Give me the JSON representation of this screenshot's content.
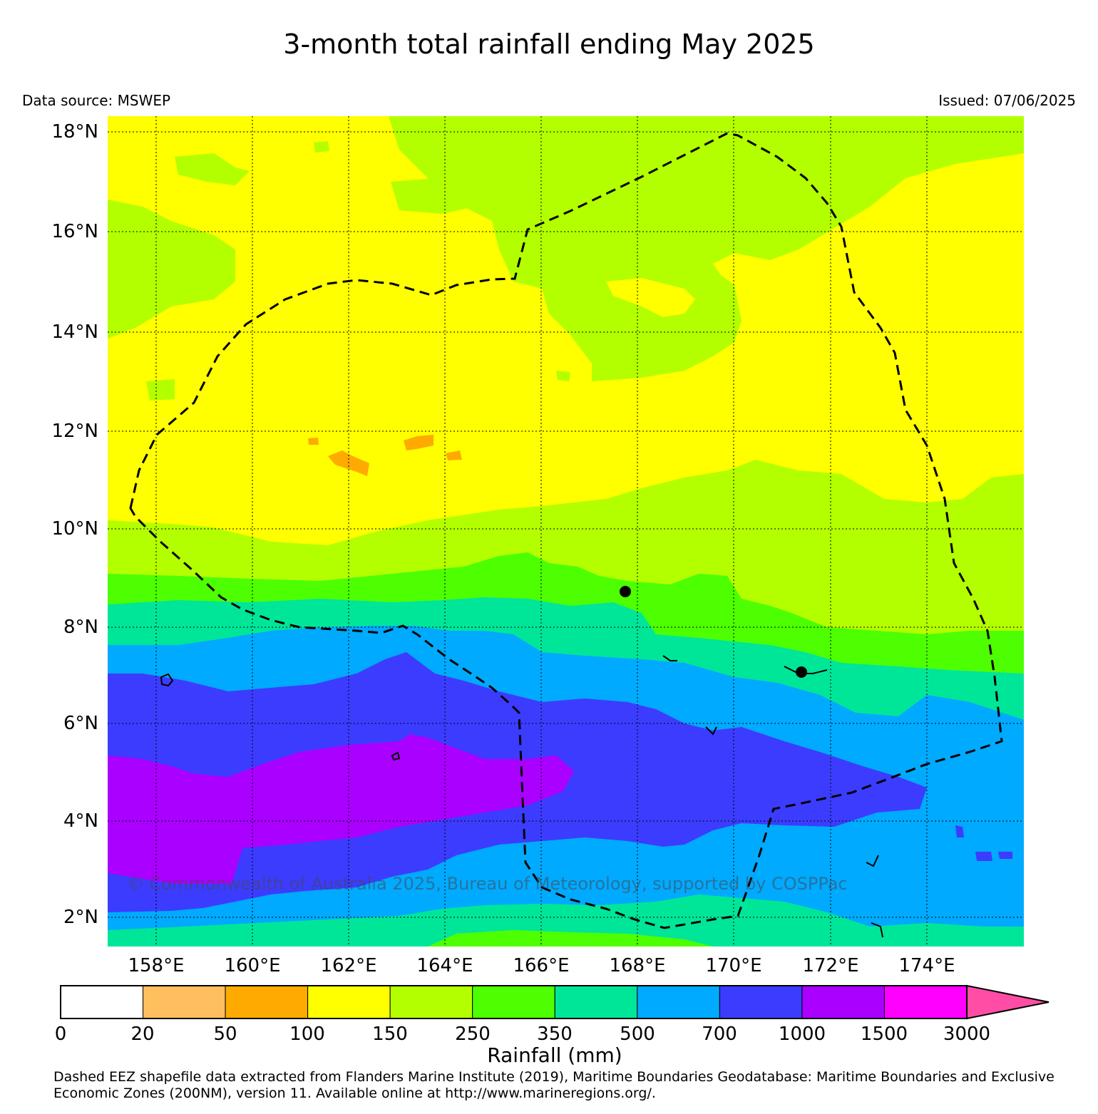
{
  "title": "3-month total rainfall ending May 2025",
  "data_source": "Data source: MSWEP",
  "issued": "Issued: 07/06/2025",
  "lat_labels": [
    "18°N",
    "16°N",
    "14°N",
    "12°N",
    "10°N",
    "8°N",
    "6°N",
    "4°N",
    "2°N"
  ],
  "lon_labels": [
    "158°E",
    "160°E",
    "162°E",
    "164°E",
    "166°E",
    "168°E",
    "170°E",
    "172°E",
    "174°E"
  ],
  "copyright": "© Commonwealth of Australia 2025, Bureau of Meteorology, supported by COSPPac",
  "colorbar": {
    "title": "Rainfall (mm)",
    "ticks": [
      "0",
      "20",
      "50",
      "100",
      "150",
      "250",
      "350",
      "500",
      "700",
      "1000",
      "1500",
      "3000"
    ],
    "colors": [
      "#ffffff",
      "#ffbf5f",
      "#ffaa00",
      "#ffff00",
      "#b3ff00",
      "#4dff00",
      "#00e699",
      "#00aaff",
      "#3c3cff",
      "#aa00ff",
      "#ff00ff"
    ],
    "extend_color": "#ff4da6"
  },
  "credit": "Dashed EEZ shapefile data extracted from Flanders Marine Institute (2019), Maritime Boundaries Geodatabase: Maritime Boundaries and Exclusive Economic Zones (200NM), version 11. Available online at http://www.marineregions.org/."
}
